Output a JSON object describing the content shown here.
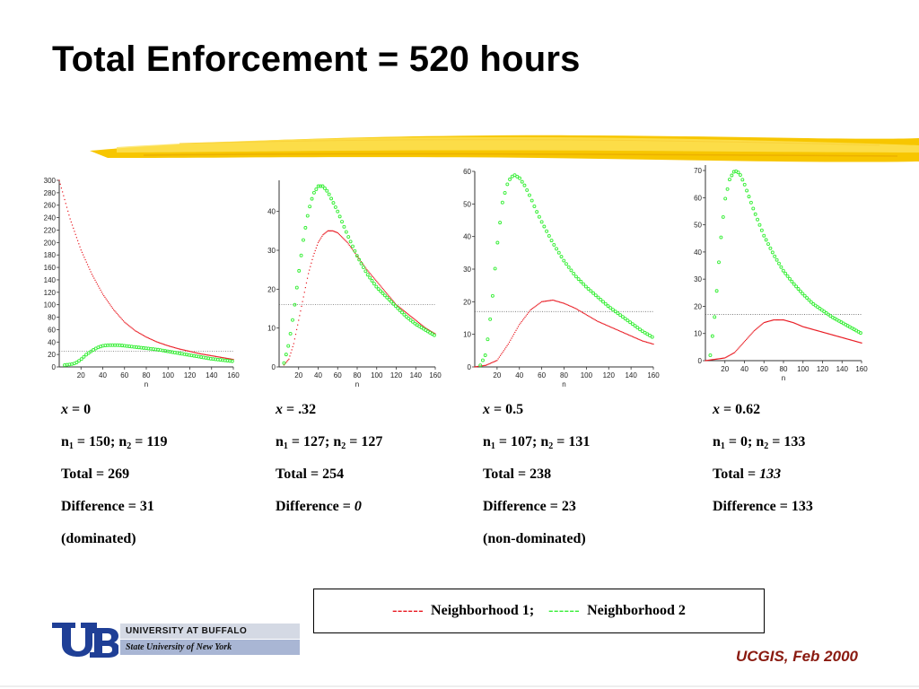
{
  "title": "Total Enforcement = 520 hours",
  "colors": {
    "neighborhood1": "#e8141c",
    "neighborhood2": "#33ee33",
    "reference_line": "#555555",
    "brush_stroke": "#f5c400",
    "footer": "#8a1a10",
    "logo_blue": "#1f3f96"
  },
  "chart_data": [
    {
      "type": "scatter",
      "xlabel": "n",
      "ylabel": "",
      "xlim": [
        0,
        160
      ],
      "ylim": [
        0,
        300
      ],
      "xticks": [
        20,
        40,
        60,
        80,
        100,
        120,
        140,
        160
      ],
      "yticks": [
        0,
        20,
        40,
        60,
        80,
        100,
        120,
        140,
        160,
        180,
        200,
        220,
        240,
        260,
        280,
        300
      ],
      "reference_y": 25,
      "series": [
        {
          "name": "Neighborhood 1",
          "color": "#e8141c",
          "marker": "dot",
          "x": [
            0,
            10,
            20,
            30,
            40,
            50,
            60,
            70,
            80,
            90,
            100,
            110,
            120,
            130,
            140,
            150,
            160
          ],
          "y": [
            300,
            238,
            188,
            149,
            117,
            92,
            72,
            58,
            48,
            40,
            34,
            29,
            25,
            21,
            18,
            15,
            12
          ]
        },
        {
          "name": "Neighborhood 2",
          "color": "#33ee33",
          "marker": "circle",
          "x": [
            5,
            10,
            15,
            20,
            25,
            30,
            35,
            40,
            45,
            50,
            55,
            60,
            70,
            80,
            90,
            100,
            110,
            120,
            130,
            140,
            150,
            160
          ],
          "y": [
            3,
            4,
            6,
            12,
            20,
            26,
            31,
            34,
            35,
            35,
            35,
            34,
            32,
            30,
            28,
            25,
            22,
            19,
            16,
            13,
            11,
            9
          ]
        }
      ]
    },
    {
      "type": "scatter",
      "xlabel": "n",
      "ylabel": "",
      "xlim": [
        0,
        160
      ],
      "ylim": [
        0,
        48
      ],
      "xticks": [
        20,
        40,
        60,
        80,
        100,
        120,
        140,
        160
      ],
      "yticks": [
        0,
        10,
        20,
        30,
        40
      ],
      "reference_y": 16,
      "series": [
        {
          "name": "Neighborhood 1",
          "color": "#e8141c",
          "marker": "dot",
          "x": [
            5,
            10,
            15,
            20,
            25,
            30,
            35,
            40,
            45,
            50,
            55,
            60,
            70,
            80,
            90,
            100,
            110,
            120,
            130,
            140,
            150,
            160
          ],
          "y": [
            0.5,
            2,
            6,
            12,
            18,
            24,
            28.5,
            32,
            34,
            35,
            35,
            34.5,
            32,
            28.5,
            25,
            22,
            19,
            16,
            14,
            12,
            10,
            8.5
          ]
        },
        {
          "name": "Neighborhood 2",
          "color": "#33ee33",
          "marker": "circle",
          "x": [
            5,
            10,
            15,
            20,
            25,
            30,
            35,
            40,
            45,
            50,
            55,
            60,
            70,
            80,
            90,
            100,
            110,
            120,
            130,
            140,
            150,
            160
          ],
          "y": [
            1,
            6,
            14,
            24,
            33,
            40,
            44.5,
            46.5,
            46.5,
            45,
            42.5,
            40,
            34,
            28.5,
            24,
            20.5,
            18,
            15.5,
            13,
            11,
            9.5,
            8
          ]
        }
      ]
    },
    {
      "type": "scatter",
      "xlabel": "n",
      "ylabel": "",
      "xlim": [
        0,
        160
      ],
      "ylim": [
        0,
        60
      ],
      "xticks": [
        20,
        40,
        60,
        80,
        100,
        120,
        140,
        160
      ],
      "yticks": [
        0,
        10,
        20,
        30,
        40,
        50,
        60
      ],
      "reference_y": 17,
      "series": [
        {
          "name": "Neighborhood 1",
          "color": "#e8141c",
          "marker": "dot",
          "x": [
            0,
            10,
            20,
            30,
            40,
            50,
            60,
            70,
            80,
            90,
            100,
            110,
            120,
            130,
            140,
            150,
            160
          ],
          "y": [
            0,
            0.5,
            2,
            7,
            13,
            17.5,
            20,
            20.5,
            19.5,
            18,
            16,
            14,
            12.5,
            11,
            9.5,
            8,
            7
          ]
        },
        {
          "name": "Neighborhood 2",
          "color": "#33ee33",
          "marker": "circle",
          "x": [
            5,
            10,
            15,
            20,
            25,
            30,
            35,
            40,
            45,
            50,
            55,
            60,
            70,
            80,
            90,
            100,
            110,
            120,
            130,
            140,
            150,
            160
          ],
          "y": [
            0.5,
            4,
            18,
            37,
            51,
            57,
            59,
            58,
            55.5,
            52,
            48,
            44.5,
            38,
            32.5,
            28,
            24.5,
            21.5,
            18.5,
            16,
            13.5,
            11,
            9
          ]
        }
      ]
    },
    {
      "type": "scatter",
      "xlabel": "n",
      "ylabel": "",
      "xlim": [
        0,
        160
      ],
      "ylim": [
        0,
        72
      ],
      "xticks": [
        20,
        40,
        60,
        80,
        100,
        120,
        140,
        160
      ],
      "yticks": [
        0,
        10,
        20,
        30,
        40,
        50,
        60,
        70
      ],
      "reference_y": 17,
      "series": [
        {
          "name": "Neighborhood 1",
          "color": "#e8141c",
          "marker": "dot",
          "x": [
            0,
            10,
            20,
            30,
            40,
            50,
            60,
            70,
            80,
            90,
            100,
            110,
            120,
            130,
            140,
            150,
            160
          ],
          "y": [
            0,
            0.5,
            1,
            3,
            7,
            11,
            14,
            15,
            15,
            14,
            12.5,
            11.5,
            10.5,
            9.5,
            8.5,
            7.5,
            6.5
          ]
        },
        {
          "name": "Neighborhood 2",
          "color": "#33ee33",
          "marker": "circle",
          "x": [
            5,
            10,
            15,
            20,
            25,
            30,
            35,
            40,
            45,
            50,
            60,
            70,
            80,
            90,
            100,
            110,
            120,
            130,
            140,
            150,
            160
          ],
          "y": [
            2,
            18,
            42,
            59,
            67,
            70,
            69,
            65,
            60,
            55,
            46,
            39,
            33,
            28.5,
            24.5,
            21,
            18.5,
            16,
            14,
            12,
            10
          ]
        }
      ]
    }
  ],
  "cases": [
    {
      "x_label": "x",
      "x_value": " = 0",
      "n_line": {
        "n1": "n",
        "s1": "1",
        "a": " = 150; n",
        "s2": "2",
        "b": " = 119"
      },
      "total_prefix": "Total = ",
      "total_value": "269",
      "diff_prefix": "Difference = ",
      "diff_value": "31",
      "note": "(dominated)"
    },
    {
      "x_label": "x",
      "x_value": " = .32",
      "n_line": {
        "n1": "n",
        "s1": "1",
        "a": " = 127; n",
        "s2": "2",
        "b": " = 127"
      },
      "total_prefix": "Total = ",
      "total_value": "254",
      "diff_prefix": "Difference = ",
      "diff_value": "0",
      "note": ""
    },
    {
      "x_label": "x",
      "x_value": " = 0.5",
      "n_line": {
        "n1": "n",
        "s1": "1",
        "a": " = 107; n",
        "s2": "2",
        "b": " = 131"
      },
      "total_prefix": "Total = ",
      "total_value": "238",
      "diff_prefix": "Difference = ",
      "diff_value": "23",
      "note": "(non-dominated)"
    },
    {
      "x_label": "x",
      "x_value": " = 0.62",
      "n_line": {
        "n1": "n",
        "s1": "1",
        "a": " = 0; n",
        "s2": "2",
        "b": " = 133"
      },
      "total_prefix": "Total = ",
      "total_value": "133",
      "diff_prefix": "Difference = ",
      "diff_value": "133",
      "note": ""
    }
  ],
  "legend": {
    "dash1": "------",
    "label1": "Neighborhood 1;",
    "dash2": "------",
    "label2": "Neighborhood 2"
  },
  "logo": {
    "line1": "UNIVERSITY AT BUFFALO",
    "line2": "State University of New York"
  },
  "footer": "UCGIS, Feb 2000"
}
